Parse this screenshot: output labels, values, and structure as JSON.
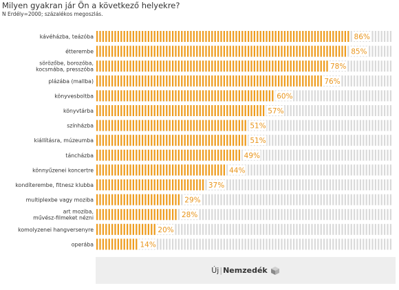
{
  "chart_data": {
    "type": "bar",
    "orientation": "horizontal",
    "title": "Milyen gyakran jár Ön a következő helyekre?",
    "subtitle": "N Erdély=2000;  százalékos megoszlás.",
    "categories": [
      [
        "kávéházba, teázóba"
      ],
      [
        "étterembe"
      ],
      [
        "sörözőbe, borozóba,",
        "kocsmába, presszóba"
      ],
      [
        "plázába (mallba)"
      ],
      [
        "könyvesboltba"
      ],
      [
        "könyvtárba"
      ],
      [
        "színházba"
      ],
      [
        "kiállításra, múzeumba"
      ],
      [
        "táncházba"
      ],
      [
        "könnyűzenei koncertre"
      ],
      [
        "kondíterembe, fitnesz klubba"
      ],
      [
        "multiplexbe vagy moziba"
      ],
      [
        "art moziba,",
        "művész-filmeket nézni"
      ],
      [
        "komolyzenei hangversenyre"
      ],
      [
        "operába"
      ]
    ],
    "values": [
      86,
      85,
      78,
      76,
      60,
      57,
      51,
      51,
      49,
      44,
      37,
      29,
      28,
      20,
      14
    ],
    "value_labels": [
      "86%",
      "85%",
      "78%",
      "76%",
      "60%",
      "57%",
      "51%",
      "51%",
      "49%",
      "44%",
      "37%",
      "29%",
      "28%",
      "20%",
      "14%"
    ],
    "xlim": [
      0,
      100
    ],
    "unit": "%",
    "grid": false,
    "legend": "none"
  },
  "colors": {
    "bar": "#ef9c1c",
    "track": "#d9d9d9",
    "value_label": "#e8941a",
    "footer_bg": "#eeeeee"
  },
  "footer": {
    "logo_prefix": "Új",
    "logo_main": "Nemzedék",
    "logo_icon": "cube-icon"
  }
}
